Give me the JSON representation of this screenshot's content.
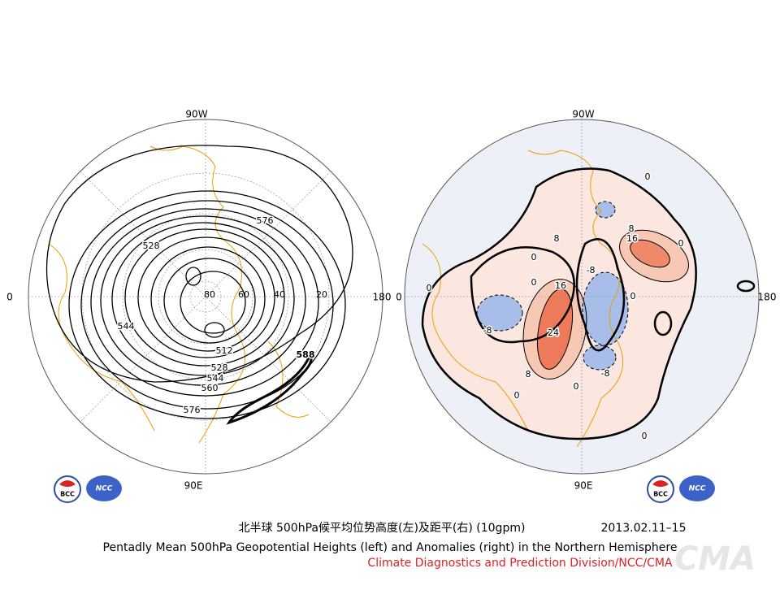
{
  "left_map": {
    "lon_labels": [
      "90W",
      "0",
      "180",
      "90E"
    ],
    "lat_labels": [
      "80",
      "60",
      "40",
      "20"
    ],
    "contour_labels": [
      "576",
      "528",
      "544",
      "588",
      "512",
      "528",
      "544",
      "560",
      "576"
    ]
  },
  "right_map": {
    "lon_labels": [
      "90W",
      "0",
      "180",
      "90E"
    ],
    "contour_labels": [
      "0",
      "8",
      "16",
      "0",
      "8",
      "0",
      "-8",
      "0",
      "16",
      "0",
      "0",
      "-8",
      "24",
      "8",
      "0",
      "-8",
      "0",
      "0"
    ]
  },
  "left_logos": [
    "BCC",
    "NCC"
  ],
  "right_logos": [
    "BCC",
    "NCC"
  ],
  "title_cn": "北半球 500hPa候平均位势高度(左)及距平(右) (10gpm)",
  "date": "2013.02.11–15",
  "title_en": "Pentadly Mean 500hPa Geopotential Heights (left) and Anomalies (right) in the Northern Hemisphere",
  "credit": "Climate Diagnostics and Prediction Division/NCC/CMA",
  "watermark": "CMA"
}
